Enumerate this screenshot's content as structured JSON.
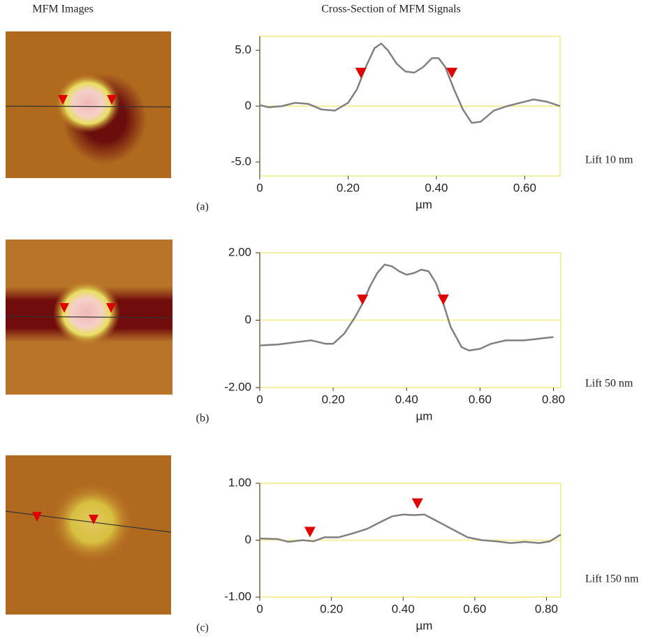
{
  "headers": {
    "left": "MFM Images",
    "right": "Cross-Section of MFM Signals"
  },
  "chart_data": [
    {
      "type": "line",
      "panel": "(a)",
      "annotation": "Lift 10 nm",
      "xlabel": "µm",
      "color": "#808080",
      "zero_line": true,
      "xlim": [
        0,
        0.68
      ],
      "xticks": [
        0,
        {
          "value": 0.2,
          "label": "0.20"
        },
        {
          "value": 0.4,
          "label": "0.40"
        },
        {
          "value": 0.6,
          "label": "0.60"
        }
      ],
      "ylim": [
        -6.25,
        6.25
      ],
      "yticks": [
        {
          "value": 5,
          "label": "5.0"
        },
        0,
        {
          "value": -5,
          "label": "-5.0"
        }
      ],
      "x": [
        0,
        0.02,
        0.05,
        0.08,
        0.11,
        0.14,
        0.17,
        0.2,
        0.22,
        0.24,
        0.26,
        0.275,
        0.29,
        0.31,
        0.33,
        0.35,
        0.37,
        0.39,
        0.405,
        0.42,
        0.44,
        0.46,
        0.48,
        0.5,
        0.53,
        0.56,
        0.59,
        0.62,
        0.65,
        0.68
      ],
      "values": [
        0.1,
        -0.1,
        0.0,
        0.3,
        0.2,
        -0.3,
        -0.4,
        0.3,
        1.5,
        3.5,
        5.2,
        5.6,
        5.0,
        3.8,
        3.1,
        3.0,
        3.5,
        4.3,
        4.3,
        3.5,
        1.5,
        -0.3,
        -1.5,
        -1.4,
        -0.4,
        0.0,
        0.3,
        0.6,
        0.4,
        0.0
      ],
      "markers": {
        "color": "#e00000",
        "x": [
          0.229,
          0.435
        ],
        "values": [
          2.5,
          2.5
        ]
      }
    },
    {
      "type": "line",
      "panel": "(b)",
      "annotation": "Lift 50 nm",
      "xlabel": "µm",
      "color": "#808080",
      "zero_line": true,
      "xlim": [
        0,
        0.82
      ],
      "xticks": [
        0,
        {
          "value": 0.2,
          "label": "0.20"
        },
        {
          "value": 0.4,
          "label": "0.40"
        },
        {
          "value": 0.6,
          "label": "0.60"
        },
        {
          "value": 0.8,
          "label": "0.80"
        }
      ],
      "ylim": [
        -2,
        2
      ],
      "yticks": [
        {
          "value": 2,
          "label": "2.00"
        },
        0,
        {
          "value": -2,
          "label": "-2.00"
        }
      ],
      "x": [
        0,
        0.05,
        0.1,
        0.14,
        0.18,
        0.2,
        0.23,
        0.26,
        0.28,
        0.3,
        0.32,
        0.34,
        0.36,
        0.38,
        0.4,
        0.42,
        0.44,
        0.46,
        0.48,
        0.5,
        0.52,
        0.55,
        0.57,
        0.6,
        0.63,
        0.67,
        0.72,
        0.76,
        0.8
      ],
      "values": [
        -0.75,
        -0.72,
        -0.65,
        -0.6,
        -0.7,
        -0.7,
        -0.4,
        0.1,
        0.5,
        1.0,
        1.4,
        1.65,
        1.6,
        1.45,
        1.35,
        1.4,
        1.5,
        1.45,
        1.1,
        0.5,
        -0.2,
        -0.8,
        -0.9,
        -0.85,
        -0.7,
        -0.6,
        -0.6,
        -0.55,
        -0.5
      ],
      "markers": {
        "color": "#e00000",
        "x": [
          0.28,
          0.5
        ],
        "values": [
          0.45,
          0.45
        ]
      }
    },
    {
      "type": "line",
      "panel": "(c)",
      "annotation": "Lift 150 nm",
      "xlabel": "µm",
      "color": "#808080",
      "zero_line": true,
      "xlim": [
        0,
        0.84
      ],
      "xticks": [
        0,
        {
          "value": 0.2,
          "label": "0.20"
        },
        {
          "value": 0.4,
          "label": "0.40"
        },
        {
          "value": 0.6,
          "label": "0.60"
        },
        {
          "value": 0.8,
          "label": "0.80"
        }
      ],
      "ylim": [
        -1,
        1
      ],
      "yticks": [
        {
          "value": 1,
          "label": "1.00"
        },
        0,
        {
          "value": -1,
          "label": "-1.00"
        }
      ],
      "x": [
        0,
        0.05,
        0.08,
        0.12,
        0.15,
        0.18,
        0.22,
        0.26,
        0.3,
        0.34,
        0.37,
        0.4,
        0.43,
        0.46,
        0.49,
        0.52,
        0.55,
        0.58,
        0.62,
        0.66,
        0.7,
        0.74,
        0.78,
        0.81,
        0.84
      ],
      "values": [
        0.03,
        0.02,
        -0.03,
        0.0,
        -0.02,
        0.05,
        0.05,
        0.12,
        0.2,
        0.33,
        0.42,
        0.45,
        0.44,
        0.45,
        0.35,
        0.25,
        0.15,
        0.05,
        0.0,
        -0.02,
        -0.05,
        -0.03,
        -0.05,
        -0.02,
        0.1
      ],
      "markers": {
        "color": "#e00000",
        "x": [
          0.14,
          0.44
        ],
        "values": [
          0.05,
          0.55
        ]
      }
    }
  ]
}
